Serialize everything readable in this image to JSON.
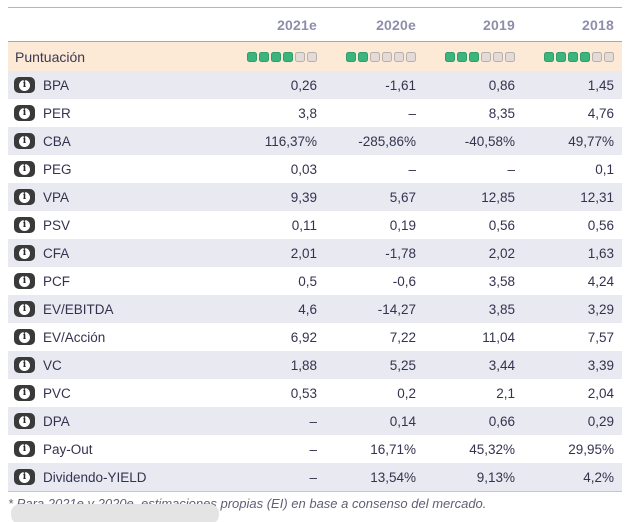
{
  "table": {
    "columns": [
      "2021e",
      "2020e",
      "2019",
      "2018"
    ],
    "score_row": {
      "label": "Puntuación",
      "rating_total": 6,
      "ratings": [
        {
          "column": "2021e",
          "filled": 4,
          "total": 6
        },
        {
          "column": "2020e",
          "filled": 2,
          "total": 6
        },
        {
          "column": "2019",
          "filled": 3,
          "total": 6
        },
        {
          "column": "2018",
          "filled": 4,
          "total": 6
        }
      ]
    },
    "rows": [
      {
        "label": "BPA",
        "values": [
          "0,26",
          "-1,61",
          "0,86",
          "1,45"
        ]
      },
      {
        "label": "PER",
        "values": [
          "3,8",
          "–",
          "8,35",
          "4,76"
        ]
      },
      {
        "label": "CBA",
        "values": [
          "116,37%",
          "-285,86%",
          "-40,58%",
          "49,77%"
        ]
      },
      {
        "label": "PEG",
        "values": [
          "0,03",
          "–",
          "–",
          "0,1"
        ]
      },
      {
        "label": "VPA",
        "values": [
          "9,39",
          "5,67",
          "12,85",
          "12,31"
        ]
      },
      {
        "label": "PSV",
        "values": [
          "0,11",
          "0,19",
          "0,56",
          "0,56"
        ]
      },
      {
        "label": "CFA",
        "values": [
          "2,01",
          "-1,78",
          "2,02",
          "1,63"
        ]
      },
      {
        "label": "PCF",
        "values": [
          "0,5",
          "-0,6",
          "3,58",
          "4,24"
        ]
      },
      {
        "label": "EV/EBITDA",
        "values": [
          "4,6",
          "-14,27",
          "3,85",
          "3,29"
        ]
      },
      {
        "label": "EV/Acción",
        "values": [
          "6,92",
          "7,22",
          "11,04",
          "7,57"
        ]
      },
      {
        "label": "VC",
        "values": [
          "1,88",
          "5,25",
          "3,44",
          "3,39"
        ]
      },
      {
        "label": "PVC",
        "values": [
          "0,53",
          "0,2",
          "2,1",
          "2,04"
        ]
      },
      {
        "label": "DPA",
        "values": [
          "–",
          "0,14",
          "0,66",
          "0,29"
        ]
      },
      {
        "label": "Pay-Out",
        "values": [
          "–",
          "16,71%",
          "45,32%",
          "29,95%"
        ]
      },
      {
        "label": "Dividendo-YIELD",
        "values": [
          "–",
          "13,54%",
          "9,13%",
          "4,2%"
        ]
      }
    ],
    "info_icon_glyph": "i",
    "footnote": "* Para 2021e y 2020e, estimaciones propias (EI) en base a consenso del mercado."
  },
  "colors": {
    "score_row_bg": "#fce9d6",
    "alt_row_bg": "#e9e9f1",
    "rating_filled": "#3bb57d",
    "rating_empty": "#e2dbd7",
    "header_text": "#8e8eab",
    "body_text": "#33334f",
    "footnote_text": "#5f5f76",
    "info_badge_bg": "#3a3a3a"
  }
}
